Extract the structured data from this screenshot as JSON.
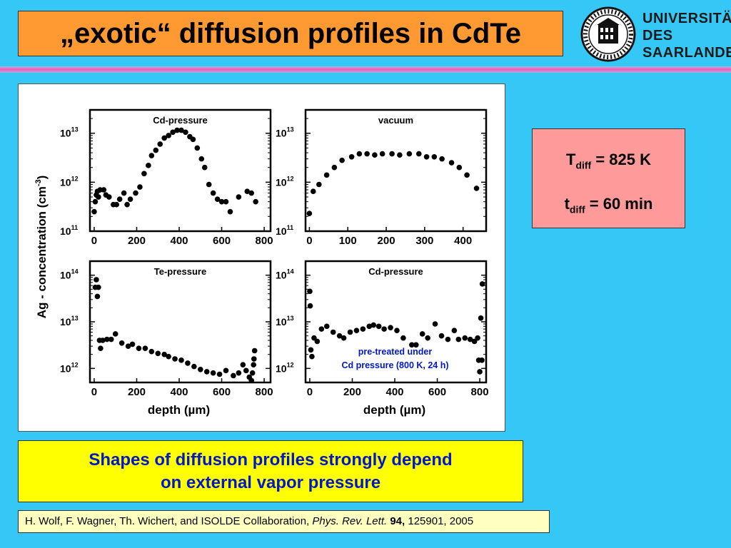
{
  "header": {
    "title": "„exotic“ diffusion profiles in CdTe",
    "logo": {
      "text_lines": [
        "UNIVERSITÄT",
        "DES",
        "SAARLANDES"
      ],
      "seal_text": "UNIVERSITAS SARAVIENSIS"
    }
  },
  "colors": {
    "background": "#35c8f6",
    "title_box": "#ff9a33",
    "params_box": "#ff9a9a",
    "summary_box": "#ffff00",
    "summary_text": "#0018c8",
    "citation_box": "#ffffc0",
    "divider": "#ff56b0",
    "annotation_text": "#0018c8"
  },
  "params": {
    "t_symbol": "T",
    "t_sub": "diff",
    "t_value": " = 825 K",
    "time_symbol": "t",
    "time_sub": "diff",
    "time_value": " = 60 min"
  },
  "summary": {
    "line1": "Shapes of diffusion profiles strongly depend",
    "line2": "on external vapor pressure"
  },
  "citation": {
    "authors": "H. Wolf, F. Wagner, Th. Wichert, and ISOLDE Collaboration, ",
    "journal": "Phys. Rev. Lett.",
    "volume": " 94,",
    "pages": " 125901, 2005"
  },
  "chart_data": {
    "shared_ylabel": "Ag - concentration (cm-3)",
    "shared_ylabel_base": "Ag - concentration (cm",
    "shared_ylabel_sup": "-3",
    "shared_ylabel_close": ")",
    "panels": [
      {
        "type": "scatter",
        "title": "Cd-pressure",
        "y_scale": "log",
        "ylim": [
          100000000000.0,
          30000000000000.0
        ],
        "xlim": [
          -20,
          830
        ],
        "x_ticks": [
          0,
          200,
          400,
          600,
          800
        ],
        "x_tick_labels": [
          "0",
          "200",
          "400",
          "600",
          "800"
        ],
        "y_ticks": [
          11,
          12,
          13
        ],
        "xlabel": "",
        "annotation": "",
        "points": [
          [
            0,
            250000000000.0
          ],
          [
            5,
            400000000000.0
          ],
          [
            10,
            550000000000.0
          ],
          [
            15,
            650000000000.0
          ],
          [
            20,
            500000000000.0
          ],
          [
            28,
            700000000000.0
          ],
          [
            45,
            700000000000.0
          ],
          [
            55,
            550000000000.0
          ],
          [
            70,
            500000000000.0
          ],
          [
            90,
            350000000000.0
          ],
          [
            105,
            350000000000.0
          ],
          [
            120,
            450000000000.0
          ],
          [
            140,
            600000000000.0
          ],
          [
            155,
            350000000000.0
          ],
          [
            170,
            450000000000.0
          ],
          [
            195,
            600000000000.0
          ],
          [
            215,
            800000000000.0
          ],
          [
            235,
            1500000000000.0
          ],
          [
            255,
            2200000000000.0
          ],
          [
            270,
            3500000000000.0
          ],
          [
            290,
            4500000000000.0
          ],
          [
            310,
            6000000000000.0
          ],
          [
            330,
            8000000000000.0
          ],
          [
            350,
            9000000000000.0
          ],
          [
            370,
            10500000000000.0
          ],
          [
            390,
            11500000000000.0
          ],
          [
            410,
            11500000000000.0
          ],
          [
            430,
            10500000000000.0
          ],
          [
            450,
            8500000000000.0
          ],
          [
            465,
            7500000000000.0
          ],
          [
            485,
            5000000000000.0
          ],
          [
            505,
            3000000000000.0
          ],
          [
            520,
            2000000000000.0
          ],
          [
            540,
            900000000000.0
          ],
          [
            560,
            600000000000.0
          ],
          [
            580,
            450000000000.0
          ],
          [
            600,
            400000000000.0
          ],
          [
            620,
            400000000000.0
          ],
          [
            640,
            250000000000.0
          ],
          [
            680,
            500000000000.0
          ],
          [
            720,
            650000000000.0
          ],
          [
            740,
            600000000000.0
          ],
          [
            760,
            400000000000.0
          ]
        ]
      },
      {
        "type": "scatter",
        "title": "vacuum",
        "y_scale": "log",
        "ylim": [
          100000000000.0,
          30000000000000.0
        ],
        "xlim": [
          -10,
          460
        ],
        "x_ticks": [
          0,
          100,
          200,
          300,
          400
        ],
        "x_tick_labels": [
          "0",
          "100",
          "200",
          "300",
          "400"
        ],
        "y_ticks": [
          11,
          12,
          13
        ],
        "xlabel": "",
        "annotation": "",
        "points": [
          [
            0,
            230000000000.0
          ],
          [
            10,
            650000000000.0
          ],
          [
            25,
            900000000000.0
          ],
          [
            45,
            1400000000000.0
          ],
          [
            65,
            2000000000000.0
          ],
          [
            85,
            2800000000000.0
          ],
          [
            110,
            3300000000000.0
          ],
          [
            130,
            3800000000000.0
          ],
          [
            150,
            3800000000000.0
          ],
          [
            170,
            3600000000000.0
          ],
          [
            190,
            3800000000000.0
          ],
          [
            215,
            3800000000000.0
          ],
          [
            235,
            3600000000000.0
          ],
          [
            260,
            3800000000000.0
          ],
          [
            285,
            3800000000000.0
          ],
          [
            305,
            3300000000000.0
          ],
          [
            325,
            3300000000000.0
          ],
          [
            345,
            3000000000000.0
          ],
          [
            370,
            2500000000000.0
          ],
          [
            390,
            2000000000000.0
          ],
          [
            410,
            1400000000000.0
          ],
          [
            435,
            750000000000.0
          ]
        ]
      },
      {
        "type": "scatter",
        "title": "Te-pressure",
        "y_scale": "log",
        "ylim": [
          500000000000.0,
          200000000000000.0
        ],
        "xlim": [
          -20,
          830
        ],
        "x_ticks": [
          0,
          200,
          400,
          600,
          800
        ],
        "x_tick_labels": [
          "0",
          "200",
          "400",
          "600",
          "800"
        ],
        "y_ticks": [
          12,
          13,
          14
        ],
        "xlabel": "depth (µm)",
        "annotation": "",
        "points": [
          [
            5,
            55000000000000.0
          ],
          [
            10,
            80000000000000.0
          ],
          [
            15,
            35000000000000.0
          ],
          [
            20,
            55000000000000.0
          ],
          [
            25,
            4000000000000.0
          ],
          [
            30,
            2700000000000.0
          ],
          [
            40,
            4000000000000.0
          ],
          [
            60,
            4200000000000.0
          ],
          [
            80,
            4200000000000.0
          ],
          [
            100,
            5500000000000.0
          ],
          [
            130,
            3500000000000.0
          ],
          [
            160,
            3000000000000.0
          ],
          [
            180,
            3300000000000.0
          ],
          [
            210,
            2700000000000.0
          ],
          [
            240,
            2700000000000.0
          ],
          [
            270,
            2300000000000.0
          ],
          [
            300,
            2100000000000.0
          ],
          [
            330,
            2000000000000.0
          ],
          [
            350,
            1800000000000.0
          ],
          [
            380,
            1600000000000.0
          ],
          [
            410,
            1500000000000.0
          ],
          [
            440,
            1300000000000.0
          ],
          [
            470,
            1100000000000.0
          ],
          [
            500,
            950000000000.0
          ],
          [
            530,
            850000000000.0
          ],
          [
            560,
            800000000000.0
          ],
          [
            590,
            750000000000.0
          ],
          [
            620,
            900000000000.0
          ],
          [
            655,
            700000000000.0
          ],
          [
            680,
            800000000000.0
          ],
          [
            700,
            1200000000000.0
          ],
          [
            715,
            900000000000.0
          ],
          [
            730,
            650000000000.0
          ],
          [
            740,
            550000000000.0
          ],
          [
            745,
            800000000000.0
          ],
          [
            750,
            1200000000000.0
          ],
          [
            752,
            1600000000000.0
          ],
          [
            755,
            2400000000000.0
          ]
        ]
      },
      {
        "type": "scatter",
        "title": "Cd-pressure",
        "y_scale": "log",
        "ylim": [
          500000000000.0,
          200000000000000.0
        ],
        "xlim": [
          -20,
          830
        ],
        "x_ticks": [
          0,
          200,
          400,
          600,
          800
        ],
        "x_tick_labels": [
          "0",
          "200",
          "400",
          "600",
          "800"
        ],
        "y_ticks": [
          12,
          13,
          14
        ],
        "xlabel": "depth (µm)",
        "annotation": [
          "pre-treated under",
          "Cd pressure (800 K, 24 h)"
        ],
        "points": [
          [
            0,
            45000000000000.0
          ],
          [
            2,
            22000000000000.0
          ],
          [
            5,
            2500000000000.0
          ],
          [
            10,
            1800000000000.0
          ],
          [
            20,
            4500000000000.0
          ],
          [
            35,
            3800000000000.0
          ],
          [
            55,
            7000000000000.0
          ],
          [
            80,
            8000000000000.0
          ],
          [
            110,
            6000000000000.0
          ],
          [
            140,
            5000000000000.0
          ],
          [
            160,
            4500000000000.0
          ],
          [
            190,
            6000000000000.0
          ],
          [
            220,
            6500000000000.0
          ],
          [
            250,
            7000000000000.0
          ],
          [
            280,
            8000000000000.0
          ],
          [
            300,
            8500000000000.0
          ],
          [
            325,
            8000000000000.0
          ],
          [
            350,
            7000000000000.0
          ],
          [
            380,
            7500000000000.0
          ],
          [
            410,
            6500000000000.0
          ],
          [
            440,
            4500000000000.0
          ],
          [
            480,
            3200000000000.0
          ],
          [
            500,
            3200000000000.0
          ],
          [
            530,
            5500000000000.0
          ],
          [
            555,
            4500000000000.0
          ],
          [
            590,
            9000000000000.0
          ],
          [
            620,
            5000000000000.0
          ],
          [
            650,
            4200000000000.0
          ],
          [
            680,
            6500000000000.0
          ],
          [
            700,
            4200000000000.0
          ],
          [
            730,
            4500000000000.0
          ],
          [
            755,
            4200000000000.0
          ],
          [
            775,
            3800000000000.0
          ],
          [
            790,
            4500000000000.0
          ],
          [
            795,
            1500000000000.0
          ],
          [
            800,
            850000000000.0
          ],
          [
            805,
            12000000000000.0
          ],
          [
            810,
            1500000000000.0
          ],
          [
            812,
            65000000000000.0
          ]
        ]
      }
    ]
  }
}
